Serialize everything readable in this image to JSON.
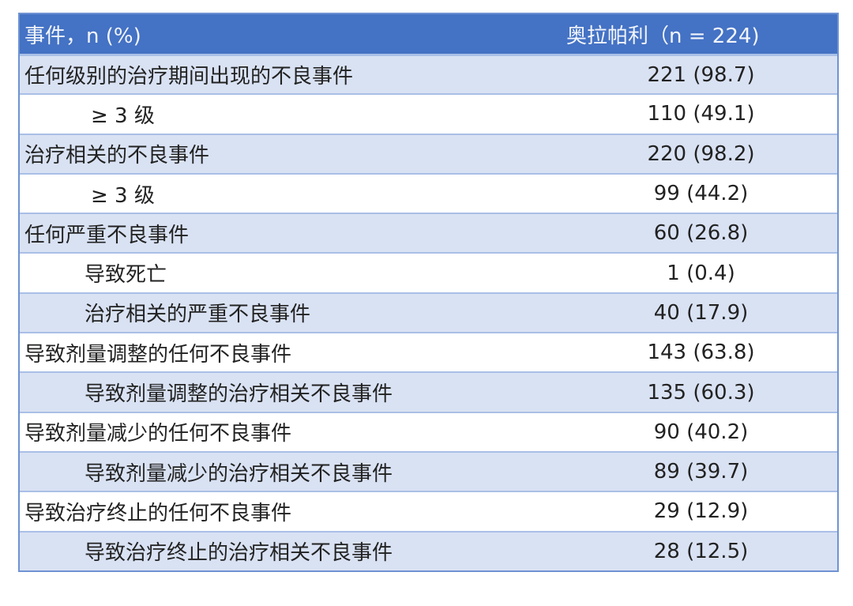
{
  "header": {
    "col1": "事件，n (%)",
    "col2": "奥拉帕利（n = 224)"
  },
  "rows": [
    {
      "label": "任何级别的治疗期间出现的不良事件",
      "value": "221 (98.7)",
      "indent": 0
    },
    {
      "label": "≥ 3 级",
      "value": "110 (49.1)",
      "indent": 1
    },
    {
      "label": "治疗相关的不良事件",
      "value": "220 (98.2)",
      "indent": 0
    },
    {
      "label": "≥ 3 级",
      "value": "99 (44.2)",
      "indent": 1
    },
    {
      "label": "任何严重不良事件",
      "value": "60 (26.8)",
      "indent": 0
    },
    {
      "label": "导致死亡",
      "value": "1 (0.4)",
      "indent": 2
    },
    {
      "label": "治疗相关的严重不良事件",
      "value": "40 (17.9)",
      "indent": 2
    },
    {
      "label": "导致剂量调整的任何不良事件",
      "value": "143 (63.8)",
      "indent": 0
    },
    {
      "label": "导致剂量调整的治疗相关不良事件",
      "value": "135 (60.3)",
      "indent": 2
    },
    {
      "label": "导致剂量减少的任何不良事件",
      "value": "90 (40.2)",
      "indent": 0
    },
    {
      "label": "导致剂量减少的治疗相关不良事件",
      "value": "89 (39.7)",
      "indent": 2
    },
    {
      "label": "导致治疗终止的任何不良事件",
      "value": "29 (12.9)",
      "indent": 0
    },
    {
      "label": "导致治疗终止的治疗相关不良事件",
      "value": "28 (12.5)",
      "indent": 2
    }
  ],
  "colors": {
    "header": "#4472c4",
    "band": "#d9e2f3",
    "border": "#a9bfe6"
  }
}
